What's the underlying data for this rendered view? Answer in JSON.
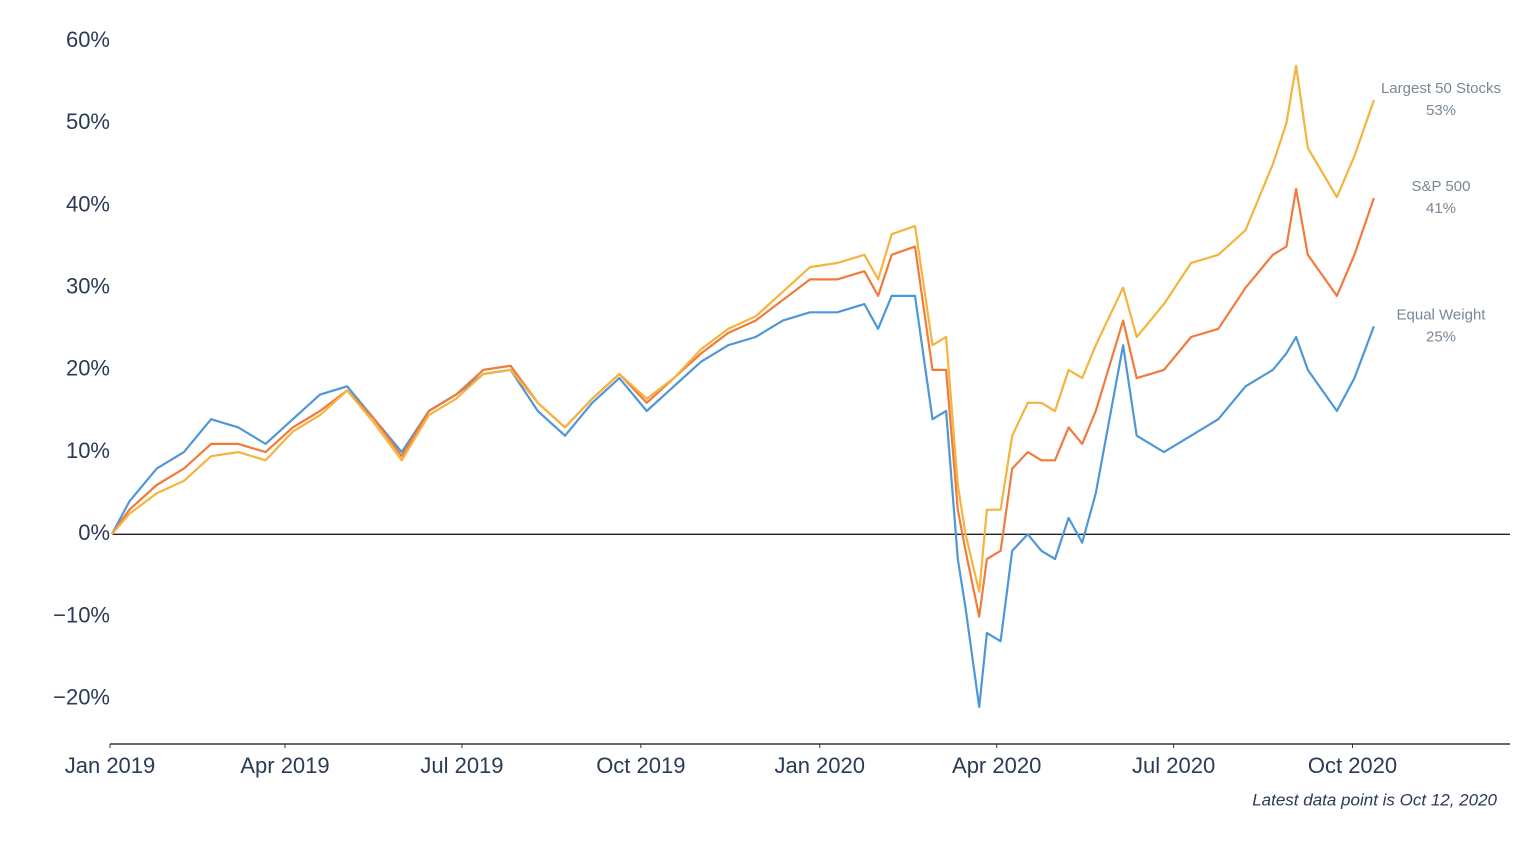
{
  "chart_data": {
    "type": "line",
    "note": "Latest data point is Oct 12, 2020",
    "x": [
      "2019-01-02",
      "2019-01-11",
      "2019-01-25",
      "2019-02-08",
      "2019-02-22",
      "2019-03-08",
      "2019-03-22",
      "2019-04-05",
      "2019-04-19",
      "2019-05-03",
      "2019-05-17",
      "2019-05-31",
      "2019-06-14",
      "2019-06-28",
      "2019-07-12",
      "2019-07-26",
      "2019-08-09",
      "2019-08-23",
      "2019-09-06",
      "2019-09-20",
      "2019-10-04",
      "2019-10-18",
      "2019-11-01",
      "2019-11-15",
      "2019-11-29",
      "2019-12-13",
      "2019-12-27",
      "2020-01-10",
      "2020-01-24",
      "2020-01-31",
      "2020-02-07",
      "2020-02-19",
      "2020-02-28",
      "2020-03-06",
      "2020-03-12",
      "2020-03-16",
      "2020-03-23",
      "2020-03-27",
      "2020-04-03",
      "2020-04-09",
      "2020-04-17",
      "2020-04-24",
      "2020-05-01",
      "2020-05-08",
      "2020-05-15",
      "2020-05-22",
      "2020-06-05",
      "2020-06-12",
      "2020-06-26",
      "2020-07-10",
      "2020-07-24",
      "2020-08-07",
      "2020-08-21",
      "2020-08-28",
      "2020-09-02",
      "2020-09-08",
      "2020-09-23",
      "2020-10-02",
      "2020-10-12"
    ],
    "series": [
      {
        "name": "Largest 50 Stocks",
        "color": "#f4b43e",
        "values": [
          0,
          2.5,
          5,
          6.5,
          9.5,
          10,
          9,
          12.5,
          14.5,
          17.5,
          13.5,
          9,
          14.5,
          16.5,
          19.5,
          20,
          16,
          13,
          16.5,
          19.5,
          16.5,
          19,
          22.5,
          25,
          26.5,
          29.5,
          32.5,
          33,
          34,
          31,
          36.5,
          37.5,
          23,
          24,
          6,
          0,
          -7,
          3,
          3,
          12,
          16,
          16,
          15,
          20,
          19,
          23,
          30,
          24,
          28,
          33,
          34,
          37,
          45,
          50,
          57,
          47,
          41,
          46,
          52.8
        ],
        "value_labels": [
          null,
          null,
          null,
          null,
          null,
          null,
          null,
          null,
          null,
          null,
          null,
          null,
          null,
          null,
          null,
          null,
          null,
          null,
          null,
          null,
          null,
          null,
          null,
          null,
          null,
          null,
          null,
          null,
          null,
          null,
          null,
          null,
          null,
          null,
          null,
          null,
          null,
          null,
          null,
          null,
          null,
          null,
          null,
          null,
          null,
          null,
          null,
          null,
          null,
          null,
          null,
          null,
          null,
          null,
          null,
          null,
          null,
          null,
          "53%"
        ]
      },
      {
        "name": "S&P 500",
        "color": "#f07b3c",
        "values": [
          0,
          3,
          6,
          8,
          11,
          11,
          10,
          13,
          15,
          17.5,
          14,
          9.5,
          15,
          17,
          20,
          20.5,
          16,
          13,
          16.5,
          19.5,
          16,
          19,
          22,
          24.5,
          26,
          28.5,
          31,
          31,
          32,
          29,
          34,
          35,
          20,
          20,
          3,
          -2,
          -10,
          -3,
          -2,
          8,
          10,
          9,
          9,
          13,
          11,
          15,
          26,
          19,
          20,
          24,
          25,
          30,
          34,
          35,
          42,
          34,
          29,
          34,
          40.9
        ],
        "value_labels": [
          null,
          null,
          null,
          null,
          null,
          null,
          null,
          null,
          null,
          null,
          null,
          null,
          null,
          null,
          null,
          null,
          null,
          null,
          null,
          null,
          null,
          null,
          null,
          null,
          null,
          null,
          null,
          null,
          null,
          null,
          null,
          null,
          null,
          null,
          null,
          null,
          null,
          null,
          null,
          null,
          null,
          null,
          null,
          null,
          null,
          null,
          null,
          null,
          null,
          null,
          null,
          null,
          null,
          null,
          null,
          null,
          null,
          null,
          "41%"
        ]
      },
      {
        "name": "Equal Weight",
        "color": "#4e97d8",
        "values": [
          0,
          4,
          8,
          10,
          14,
          13,
          11,
          14,
          17,
          18,
          14,
          10,
          15,
          17,
          19.5,
          20,
          15,
          12,
          16,
          19,
          15,
          18,
          21,
          23,
          24,
          26,
          27,
          27,
          28,
          25,
          29,
          29,
          14,
          15,
          -3,
          -9,
          -21,
          -12,
          -13,
          -2,
          0,
          -2,
          -3,
          2,
          -1,
          5,
          23,
          12,
          10,
          12,
          14,
          18,
          20,
          22,
          24,
          20,
          15,
          19,
          25.3
        ],
        "value_labels": [
          null,
          null,
          null,
          null,
          null,
          null,
          null,
          null,
          null,
          null,
          null,
          null,
          null,
          null,
          null,
          null,
          null,
          null,
          null,
          null,
          null,
          null,
          null,
          null,
          null,
          null,
          null,
          null,
          null,
          null,
          null,
          null,
          null,
          null,
          null,
          null,
          null,
          null,
          null,
          null,
          null,
          null,
          null,
          null,
          null,
          null,
          null,
          null,
          null,
          null,
          null,
          null,
          null,
          null,
          null,
          null,
          null,
          null,
          "25%"
        ]
      }
    ],
    "xlim": [
      "2019-01-01",
      "2020-12-21"
    ],
    "xticks": [
      {
        "value": "2019-01-01",
        "label": "Jan 2019"
      },
      {
        "value": "2019-04-01",
        "label": "Apr 2019"
      },
      {
        "value": "2019-07-01",
        "label": "Jul 2019"
      },
      {
        "value": "2019-10-01",
        "label": "Oct 2019"
      },
      {
        "value": "2020-01-01",
        "label": "Jan 2020"
      },
      {
        "value": "2020-04-01",
        "label": "Apr 2020"
      },
      {
        "value": "2020-07-01",
        "label": "Jul 2020"
      },
      {
        "value": "2020-10-01",
        "label": "Oct 2020"
      }
    ],
    "ylim": [
      -25.5,
      60
    ],
    "yticks": [
      {
        "value": -20,
        "label": "−20%"
      },
      {
        "value": -10,
        "label": "−10%"
      },
      {
        "value": 0,
        "label": "0%"
      },
      {
        "value": 10,
        "label": "10%"
      },
      {
        "value": 20,
        "label": "20%"
      },
      {
        "value": 30,
        "label": "30%"
      },
      {
        "value": 40,
        "label": "40%"
      },
      {
        "value": 50,
        "label": "50%"
      },
      {
        "value": 60,
        "label": "60%"
      }
    ],
    "baseline": 0,
    "grid": false
  }
}
